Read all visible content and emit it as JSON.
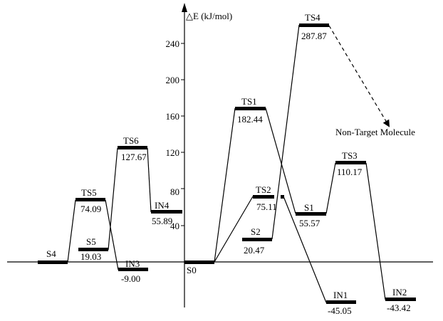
{
  "axis": {
    "label": "△E (kJ/mol)",
    "ticks": [
      40,
      80,
      120,
      160,
      200,
      240
    ]
  },
  "states": [
    {
      "id": "S4",
      "name": "S4",
      "value_label": ""
    },
    {
      "id": "TS5",
      "name": "TS5",
      "value_label": "74.09"
    },
    {
      "id": "S5",
      "name": "S5",
      "value_label": "19.03"
    },
    {
      "id": "IN3",
      "name": "IN3",
      "value_label": "-9.00"
    },
    {
      "id": "TS6",
      "name": "TS6",
      "value_label": "127.67"
    },
    {
      "id": "IN4",
      "name": "IN4",
      "value_label": "55.89"
    },
    {
      "id": "S0",
      "name": "S0",
      "value_label": ""
    },
    {
      "id": "TS1",
      "name": "TS1",
      "value_label": "182.44"
    },
    {
      "id": "TS2",
      "name": "TS2",
      "value_label": "75.11"
    },
    {
      "id": "S2",
      "name": "S2",
      "value_label": "20.47"
    },
    {
      "id": "TS4",
      "name": "TS4",
      "value_label": "287.87"
    },
    {
      "id": "S1",
      "name": "S1",
      "value_label": "55.57"
    },
    {
      "id": "TS3",
      "name": "TS3",
      "value_label": "110.17"
    },
    {
      "id": "IN1",
      "name": "IN1",
      "value_label": "-45.05"
    },
    {
      "id": "IN2",
      "name": "IN2",
      "value_label": "-43.42"
    }
  ],
  "annotation": {
    "text": "Non-Target Molecule"
  }
}
